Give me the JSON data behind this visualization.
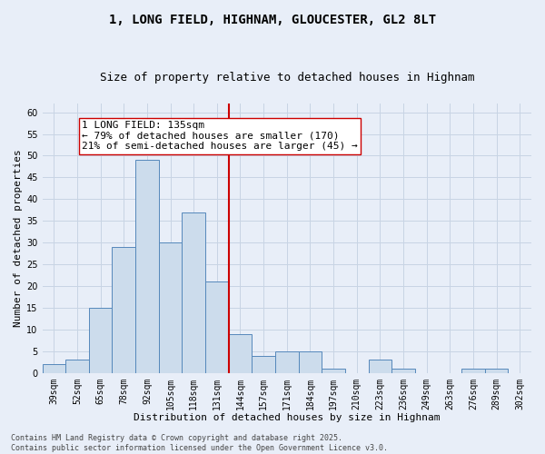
{
  "title": "1, LONG FIELD, HIGHNAM, GLOUCESTER, GL2 8LT",
  "subtitle": "Size of property relative to detached houses in Highnam",
  "xlabel": "Distribution of detached houses by size in Highnam",
  "ylabel": "Number of detached properties",
  "categories": [
    "39sqm",
    "52sqm",
    "65sqm",
    "78sqm",
    "92sqm",
    "105sqm",
    "118sqm",
    "131sqm",
    "144sqm",
    "157sqm",
    "171sqm",
    "184sqm",
    "197sqm",
    "210sqm",
    "223sqm",
    "236sqm",
    "249sqm",
    "263sqm",
    "276sqm",
    "289sqm",
    "302sqm"
  ],
  "values": [
    2,
    3,
    15,
    29,
    49,
    30,
    37,
    21,
    9,
    4,
    5,
    5,
    1,
    0,
    3,
    1,
    0,
    0,
    1,
    1,
    0
  ],
  "bar_color": "#ccdcec",
  "bar_edge_color": "#5588bb",
  "vline_color": "#cc0000",
  "annotation_text": "1 LONG FIELD: 135sqm\n← 79% of detached houses are smaller (170)\n21% of semi-detached houses are larger (45) →",
  "annotation_box_facecolor": "#ffffff",
  "annotation_box_edgecolor": "#cc0000",
  "ylim": [
    0,
    62
  ],
  "yticks": [
    0,
    5,
    10,
    15,
    20,
    25,
    30,
    35,
    40,
    45,
    50,
    55,
    60
  ],
  "grid_color": "#c8d4e4",
  "background_color": "#e8eef8",
  "footer_text": "Contains HM Land Registry data © Crown copyright and database right 2025.\nContains public sector information licensed under the Open Government Licence v3.0.",
  "title_fontsize": 10,
  "subtitle_fontsize": 9,
  "xlabel_fontsize": 8,
  "ylabel_fontsize": 8,
  "tick_fontsize": 7,
  "annotation_fontsize": 8,
  "footer_fontsize": 6
}
